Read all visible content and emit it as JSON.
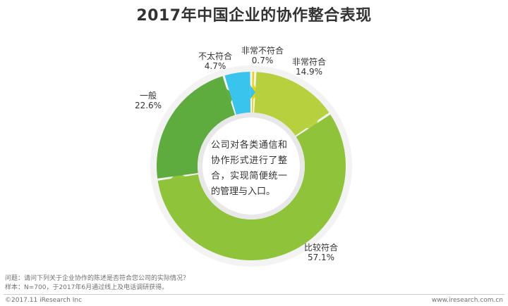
{
  "chart_data": {
    "type": "pie",
    "title": "2017年中国企业的协作整合表现",
    "categories": [
      "非常不符合",
      "非常符合",
      "比较符合",
      "一般",
      "不太符合"
    ],
    "values": [
      0.7,
      14.9,
      57.1,
      22.6,
      4.7
    ],
    "value_labels": [
      "0.7%",
      "14.9%",
      "57.1%",
      "22.6%",
      "4.7%"
    ],
    "colors": [
      "#f2d100",
      "#b6d13d",
      "#8fc43a",
      "#5fac3e",
      "#39c4ee"
    ],
    "center_text": "公司对各类通信和协作形式进行了整合，实现简便统一的管理与入口。"
  },
  "footer": {
    "question": "问题：请问下列关于企业协作的陈述是否符合您公司的实际情况？",
    "sample": "样本：N=700，于2017年6月通过线上及电话调研获得。",
    "copyright": "©2017.11 iResearch Inc",
    "site": "www.iresearch.com.cn"
  }
}
